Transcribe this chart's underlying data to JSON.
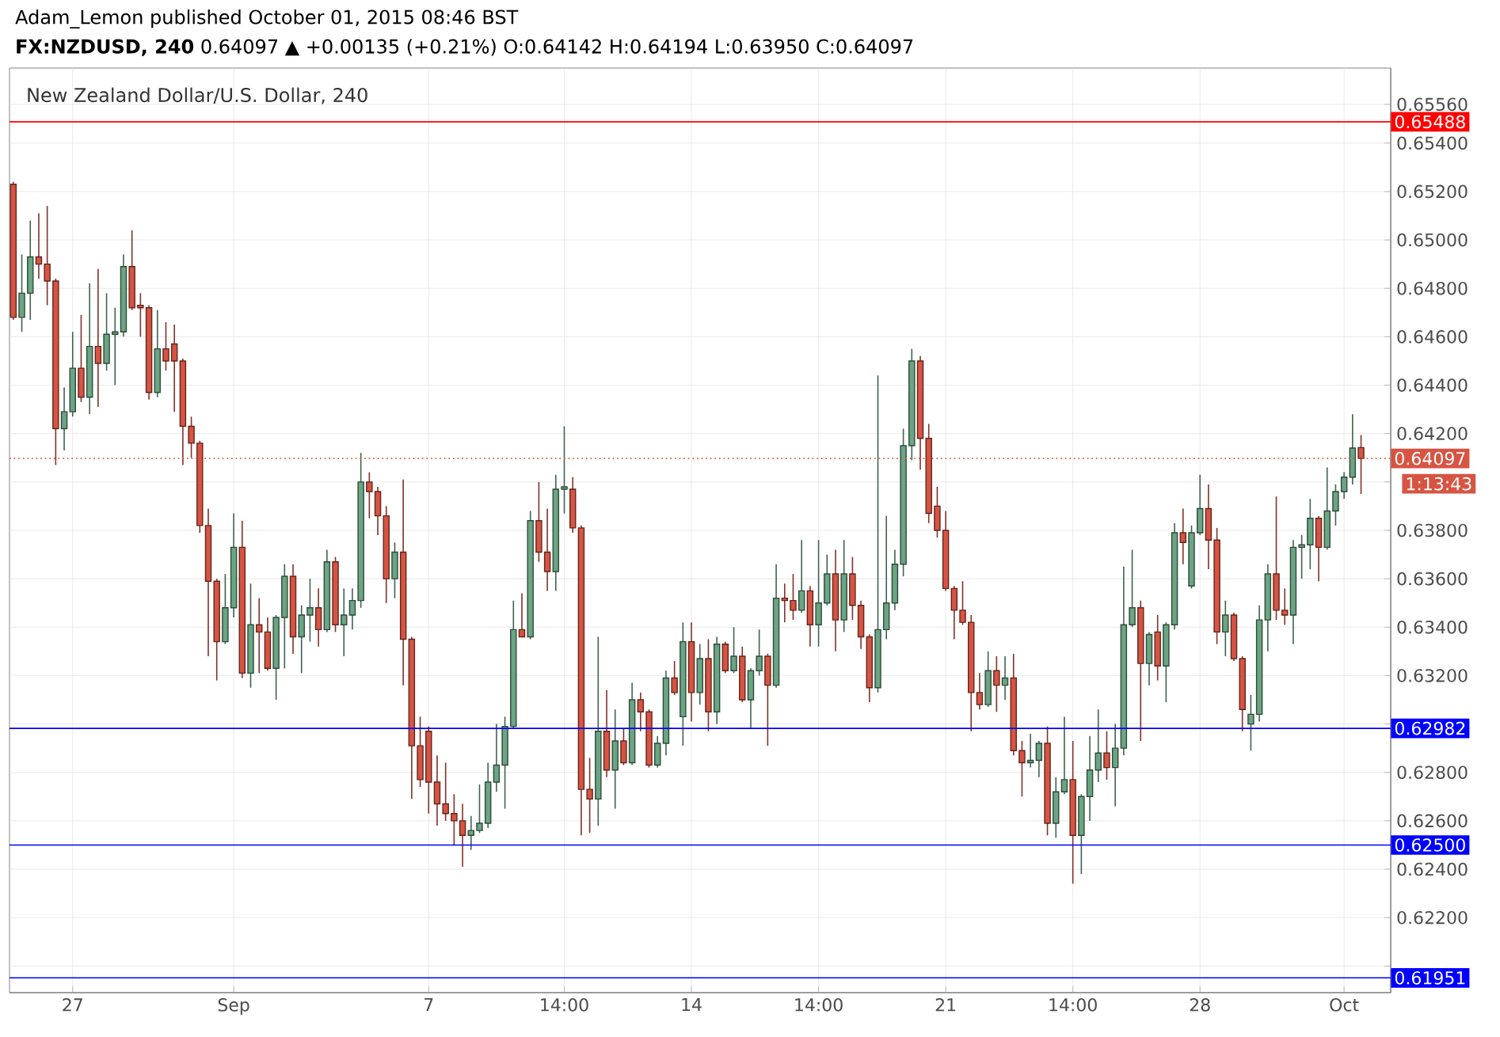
{
  "chart_data": {
    "type": "candlestick",
    "title": "New Zealand Dollar/U.S. Dollar, 240",
    "annotations": [
      "Adam_Lemon published October 01, 2015 08:46 BST",
      "**FX:NZDUSD, 240**  0.64097 ▲ +0.00135 (+0.21%)  O:0.64142  H:0.64194  L:0.63950  C:0.64097",
      "1:13:43"
    ],
    "categories": [
      null,
      null,
      null,
      null,
      null,
      null,
      null,
      "27",
      null,
      null,
      null,
      null,
      null,
      null,
      null,
      null,
      null,
      null,
      null,
      null,
      null,
      null,
      null,
      null,
      null,
      null,
      "Sep",
      null,
      null,
      null,
      null,
      null,
      null,
      null,
      null,
      null,
      null,
      null,
      null,
      null,
      null,
      null,
      null,
      null,
      null,
      null,
      null,
      null,
      null,
      "7",
      null,
      null,
      null,
      null,
      null,
      null,
      null,
      null,
      null,
      null,
      null,
      null,
      null,
      null,
      null,
      "14:00",
      null,
      null,
      null,
      null,
      null,
      null,
      null,
      null,
      null,
      null,
      null,
      null,
      null,
      null,
      "14",
      null,
      null,
      null,
      null,
      null,
      null,
      null,
      null,
      null,
      null,
      null,
      null,
      null,
      null,
      "14:00",
      null,
      null,
      null,
      null,
      null,
      null,
      null,
      null,
      null,
      null,
      null,
      null,
      null,
      null,
      "21",
      null,
      null,
      null,
      null,
      null,
      null,
      null,
      null,
      null,
      null,
      null,
      null,
      null,
      null,
      "14:00",
      null,
      null,
      null,
      null,
      null,
      null,
      null,
      null,
      null,
      null,
      null,
      null,
      null,
      null,
      "28",
      null,
      null,
      null,
      null,
      null,
      null,
      null,
      null,
      null,
      null,
      null,
      null,
      null,
      null,
      null,
      null,
      "Oct",
      null,
      null
    ],
    "ohlc": [
      [
        0.6523,
        0.6524,
        0.6467,
        0.6468
      ],
      [
        0.6468,
        0.6494,
        0.6462,
        0.6478
      ],
      [
        0.6478,
        0.6508,
        0.6467,
        0.6493
      ],
      [
        0.6493,
        0.6511,
        0.6484,
        0.649
      ],
      [
        0.649,
        0.6514,
        0.6473,
        0.6483
      ],
      [
        0.6483,
        0.6484,
        0.6407,
        0.6422
      ],
      [
        0.6422,
        0.6439,
        0.6413,
        0.6429
      ],
      [
        0.6429,
        0.6462,
        0.6427,
        0.6447
      ],
      [
        0.6447,
        0.6469,
        0.6433,
        0.6435
      ],
      [
        0.6435,
        0.6482,
        0.6428,
        0.6456
      ],
      [
        0.6456,
        0.6488,
        0.6431,
        0.6449
      ],
      [
        0.6449,
        0.6478,
        0.6446,
        0.6461
      ],
      [
        0.6461,
        0.6472,
        0.644,
        0.6462
      ],
      [
        0.6462,
        0.6494,
        0.646,
        0.6489
      ],
      [
        0.6489,
        0.6504,
        0.6471,
        0.6472
      ],
      [
        0.6473,
        0.6478,
        0.646,
        0.6472
      ],
      [
        0.6472,
        0.6473,
        0.6434,
        0.6437
      ],
      [
        0.6437,
        0.6471,
        0.6435,
        0.6455
      ],
      [
        0.6455,
        0.6466,
        0.6446,
        0.645
      ],
      [
        0.6457,
        0.6465,
        0.6429,
        0.645
      ],
      [
        0.645,
        0.6451,
        0.6407,
        0.6423
      ],
      [
        0.6423,
        0.6427,
        0.641,
        0.6416
      ],
      [
        0.6416,
        0.6417,
        0.6379,
        0.6382
      ],
      [
        0.6382,
        0.6389,
        0.6328,
        0.6359
      ],
      [
        0.6359,
        0.636,
        0.6318,
        0.6334
      ],
      [
        0.6334,
        0.6362,
        0.6333,
        0.6348
      ],
      [
        0.6348,
        0.6387,
        0.6344,
        0.6373
      ],
      [
        0.6373,
        0.6384,
        0.6319,
        0.6321
      ],
      [
        0.6321,
        0.6358,
        0.6315,
        0.6341
      ],
      [
        0.6341,
        0.6352,
        0.6321,
        0.6338
      ],
      [
        0.6338,
        0.6344,
        0.6322,
        0.6323
      ],
      [
        0.6323,
        0.6345,
        0.631,
        0.6344
      ],
      [
        0.6344,
        0.6366,
        0.6323,
        0.6361
      ],
      [
        0.6361,
        0.6366,
        0.6329,
        0.6336
      ],
      [
        0.6336,
        0.6349,
        0.6321,
        0.6345
      ],
      [
        0.6345,
        0.636,
        0.6334,
        0.6348
      ],
      [
        0.6348,
        0.6356,
        0.6332,
        0.6339
      ],
      [
        0.6339,
        0.6372,
        0.6338,
        0.6367
      ],
      [
        0.6367,
        0.6369,
        0.6338,
        0.6341
      ],
      [
        0.6341,
        0.6356,
        0.6328,
        0.6345
      ],
      [
        0.6345,
        0.6356,
        0.6339,
        0.6351
      ],
      [
        0.6351,
        0.6412,
        0.6348,
        0.64
      ],
      [
        0.64,
        0.6404,
        0.6385,
        0.6396
      ],
      [
        0.6396,
        0.6398,
        0.6378,
        0.6386
      ],
      [
        0.6386,
        0.639,
        0.635,
        0.636
      ],
      [
        0.636,
        0.6375,
        0.6352,
        0.6371
      ],
      [
        0.6371,
        0.6401,
        0.6316,
        0.6335
      ],
      [
        0.6335,
        0.6336,
        0.6269,
        0.6291
      ],
      [
        0.6291,
        0.6303,
        0.6274,
        0.6277
      ],
      [
        0.6297,
        0.6299,
        0.6263,
        0.6276
      ],
      [
        0.6276,
        0.6287,
        0.6258,
        0.6267
      ],
      [
        0.6267,
        0.6284,
        0.626,
        0.6263
      ],
      [
        0.6263,
        0.6271,
        0.625,
        0.626
      ],
      [
        0.626,
        0.6267,
        0.6241,
        0.6254
      ],
      [
        0.6254,
        0.6262,
        0.6248,
        0.6256
      ],
      [
        0.6256,
        0.6275,
        0.6255,
        0.6259
      ],
      [
        0.6259,
        0.6284,
        0.6257,
        0.6276
      ],
      [
        0.6276,
        0.63,
        0.6272,
        0.6283
      ],
      [
        0.6283,
        0.6303,
        0.6265,
        0.6299
      ],
      [
        0.6299,
        0.6351,
        0.6298,
        0.6339
      ],
      [
        0.6339,
        0.6354,
        0.6336,
        0.6336
      ],
      [
        0.6336,
        0.6388,
        0.6335,
        0.6384
      ],
      [
        0.6384,
        0.64,
        0.6367,
        0.6371
      ],
      [
        0.6371,
        0.6389,
        0.6355,
        0.6363
      ],
      [
        0.6363,
        0.6403,
        0.6355,
        0.6397
      ],
      [
        0.6397,
        0.6423,
        0.6387,
        0.6398
      ],
      [
        0.6397,
        0.6402,
        0.6379,
        0.6381
      ],
      [
        0.6381,
        0.6382,
        0.6254,
        0.6273
      ],
      [
        0.6273,
        0.6286,
        0.6255,
        0.6269
      ],
      [
        0.6269,
        0.6336,
        0.6258,
        0.6297
      ],
      [
        0.6297,
        0.6314,
        0.6278,
        0.6281
      ],
      [
        0.6281,
        0.6306,
        0.6265,
        0.6293
      ],
      [
        0.6293,
        0.6298,
        0.6283,
        0.6284
      ],
      [
        0.6284,
        0.6317,
        0.6283,
        0.631
      ],
      [
        0.631,
        0.6313,
        0.6297,
        0.6305
      ],
      [
        0.6305,
        0.6306,
        0.6282,
        0.6283
      ],
      [
        0.6283,
        0.6295,
        0.6282,
        0.6292
      ],
      [
        0.6292,
        0.6322,
        0.6287,
        0.6319
      ],
      [
        0.6319,
        0.6326,
        0.6312,
        0.6313
      ],
      [
        0.6303,
        0.6342,
        0.6291,
        0.6334
      ],
      [
        0.6334,
        0.6342,
        0.6301,
        0.6313
      ],
      [
        0.6313,
        0.6333,
        0.6308,
        0.6327
      ],
      [
        0.6327,
        0.6335,
        0.6297,
        0.6305
      ],
      [
        0.6305,
        0.6336,
        0.63,
        0.6333
      ],
      [
        0.6333,
        0.6334,
        0.6321,
        0.6322
      ],
      [
        0.6322,
        0.634,
        0.6321,
        0.6328
      ],
      [
        0.6328,
        0.6332,
        0.6309,
        0.631
      ],
      [
        0.631,
        0.6323,
        0.6298,
        0.6322
      ],
      [
        0.6322,
        0.6339,
        0.632,
        0.6328
      ],
      [
        0.6328,
        0.6329,
        0.6291,
        0.6316
      ],
      [
        0.6316,
        0.6366,
        0.6315,
        0.6352
      ],
      [
        0.6352,
        0.6358,
        0.6342,
        0.6351
      ],
      [
        0.6351,
        0.6362,
        0.6343,
        0.6347
      ],
      [
        0.6347,
        0.6376,
        0.6346,
        0.6355
      ],
      [
        0.6355,
        0.6357,
        0.6332,
        0.6341
      ],
      [
        0.6341,
        0.6376,
        0.6332,
        0.635
      ],
      [
        0.635,
        0.637,
        0.6349,
        0.6362
      ],
      [
        0.6362,
        0.6372,
        0.633,
        0.6343
      ],
      [
        0.6343,
        0.6376,
        0.6338,
        0.6362
      ],
      [
        0.6362,
        0.6369,
        0.6343,
        0.6349
      ],
      [
        0.6349,
        0.6351,
        0.6331,
        0.6336
      ],
      [
        0.6336,
        0.6337,
        0.6309,
        0.6315
      ],
      [
        0.6315,
        0.6444,
        0.6313,
        0.6339
      ],
      [
        0.6339,
        0.6386,
        0.6335,
        0.635
      ],
      [
        0.635,
        0.6372,
        0.6347,
        0.6366
      ],
      [
        0.6366,
        0.6422,
        0.6361,
        0.6415
      ],
      [
        0.6415,
        0.6455,
        0.6409,
        0.645
      ],
      [
        0.645,
        0.6452,
        0.6405,
        0.6418
      ],
      [
        0.6418,
        0.6424,
        0.6383,
        0.6387
      ],
      [
        0.639,
        0.6398,
        0.6377,
        0.638
      ],
      [
        0.638,
        0.6388,
        0.6355,
        0.6356
      ],
      [
        0.6356,
        0.6357,
        0.6335,
        0.6347
      ],
      [
        0.6347,
        0.6359,
        0.6341,
        0.6342
      ],
      [
        0.6342,
        0.6345,
        0.6297,
        0.6313
      ],
      [
        0.6313,
        0.6321,
        0.6306,
        0.6308
      ],
      [
        0.6308,
        0.633,
        0.6307,
        0.6322
      ],
      [
        0.6322,
        0.6328,
        0.6305,
        0.6316
      ],
      [
        0.6316,
        0.6328,
        0.631,
        0.6319
      ],
      [
        0.6319,
        0.6329,
        0.6287,
        0.6289
      ],
      [
        0.6289,
        0.6293,
        0.627,
        0.6284
      ],
      [
        0.6284,
        0.6296,
        0.6282,
        0.6285
      ],
      [
        0.6285,
        0.6293,
        0.6278,
        0.6292
      ],
      [
        0.6292,
        0.6299,
        0.6254,
        0.6259
      ],
      [
        0.6259,
        0.6278,
        0.6253,
        0.6272
      ],
      [
        0.6272,
        0.6303,
        0.6271,
        0.6277
      ],
      [
        0.6277,
        0.6293,
        0.6234,
        0.6254
      ],
      [
        0.6254,
        0.6271,
        0.6238,
        0.627
      ],
      [
        0.627,
        0.6295,
        0.626,
        0.6281
      ],
      [
        0.6281,
        0.6306,
        0.6276,
        0.6288
      ],
      [
        0.6288,
        0.6297,
        0.6277,
        0.6282
      ],
      [
        0.6282,
        0.63,
        0.6266,
        0.629
      ],
      [
        0.629,
        0.6365,
        0.6287,
        0.6341
      ],
      [
        0.6341,
        0.6372,
        0.634,
        0.6348
      ],
      [
        0.6348,
        0.6351,
        0.6293,
        0.6325
      ],
      [
        0.6325,
        0.6338,
        0.6316,
        0.6337
      ],
      [
        0.6338,
        0.6345,
        0.6318,
        0.6324
      ],
      [
        0.6324,
        0.6342,
        0.6309,
        0.6341
      ],
      [
        0.6341,
        0.6383,
        0.6339,
        0.6379
      ],
      [
        0.6379,
        0.6389,
        0.6366,
        0.6375
      ],
      [
        0.6357,
        0.6382,
        0.6356,
        0.6379
      ],
      [
        0.6379,
        0.6403,
        0.6378,
        0.6389
      ],
      [
        0.6389,
        0.6399,
        0.6364,
        0.6376
      ],
      [
        0.6376,
        0.6381,
        0.6333,
        0.6338
      ],
      [
        0.6338,
        0.6351,
        0.6328,
        0.6345
      ],
      [
        0.6345,
        0.6346,
        0.6326,
        0.6327
      ],
      [
        0.6327,
        0.6328,
        0.6297,
        0.6306
      ],
      [
        0.63,
        0.6312,
        0.6289,
        0.6304
      ],
      [
        0.6304,
        0.6349,
        0.6301,
        0.6343
      ],
      [
        0.6343,
        0.6366,
        0.633,
        0.6362
      ],
      [
        0.6362,
        0.6394,
        0.6343,
        0.6347
      ],
      [
        0.6347,
        0.6356,
        0.6341,
        0.6345
      ],
      [
        0.6345,
        0.6376,
        0.6333,
        0.6373
      ],
      [
        0.6373,
        0.6378,
        0.636,
        0.6374
      ],
      [
        0.6374,
        0.6393,
        0.6364,
        0.6385
      ],
      [
        0.6385,
        0.6386,
        0.6359,
        0.6373
      ],
      [
        0.6373,
        0.6406,
        0.6372,
        0.6388
      ],
      [
        0.6388,
        0.6399,
        0.6382,
        0.6396
      ],
      [
        0.6396,
        0.6404,
        0.6393,
        0.6402
      ],
      [
        0.6402,
        0.6428,
        0.6399,
        0.6414
      ],
      [
        0.64142,
        0.64194,
        0.6395,
        0.64097
      ]
    ],
    "colors": [
      "#d75442",
      "#6ba583",
      "#6ba583",
      "#d75442",
      "#d75442",
      "#d75442",
      "#6ba583",
      "#6ba583",
      "#d75442",
      "#6ba583",
      "#d75442",
      "#6ba583",
      "#6ba583",
      "#6ba583",
      "#d75442",
      "#d75442",
      "#d75442",
      "#6ba583",
      "#d75442",
      "#d75442",
      "#d75442",
      "#d75442",
      "#d75442",
      "#d75442",
      "#d75442",
      "#6ba583",
      "#6ba583",
      "#d75442",
      "#6ba583",
      "#d75442",
      "#d75442",
      "#6ba583",
      "#6ba583",
      "#d75442",
      "#6ba583",
      "#6ba583",
      "#d75442",
      "#6ba583",
      "#d75442",
      "#6ba583",
      "#6ba583",
      "#6ba583",
      "#d75442",
      "#d75442",
      "#d75442",
      "#6ba583",
      "#d75442",
      "#d75442",
      "#d75442",
      "#d75442",
      "#d75442",
      "#d75442",
      "#d75442",
      "#d75442",
      "#6ba583",
      "#6ba583",
      "#6ba583",
      "#6ba583",
      "#6ba583",
      "#6ba583",
      "#d75442",
      "#6ba583",
      "#d75442",
      "#d75442",
      "#6ba583",
      "#6ba583",
      "#d75442",
      "#d75442",
      "#d75442",
      "#6ba583",
      "#d75442",
      "#6ba583",
      "#d75442",
      "#6ba583",
      "#d75442",
      "#d75442",
      "#6ba583",
      "#6ba583",
      "#d75442",
      "#6ba583",
      "#d75442",
      "#6ba583",
      "#d75442",
      "#6ba583",
      "#d75442",
      "#6ba583",
      "#d75442",
      "#6ba583",
      "#6ba583",
      "#d75442",
      "#6ba583",
      "#d75442",
      "#d75442",
      "#6ba583",
      "#d75442",
      "#6ba583",
      "#6ba583",
      "#d75442",
      "#6ba583",
      "#d75442",
      "#d75442",
      "#d75442",
      "#6ba583",
      "#6ba583",
      "#6ba583",
      "#6ba583",
      "#6ba583",
      "#d75442",
      "#d75442",
      "#d75442",
      "#d75442",
      "#d75442",
      "#d75442",
      "#d75442",
      "#d75442",
      "#6ba583",
      "#d75442",
      "#6ba583",
      "#d75442",
      "#d75442",
      "#6ba583",
      "#6ba583",
      "#d75442",
      "#6ba583",
      "#6ba583",
      "#d75442",
      "#6ba583",
      "#6ba583",
      "#6ba583",
      "#d75442",
      "#6ba583",
      "#6ba583",
      "#6ba583",
      "#d75442",
      "#6ba583",
      "#d75442",
      "#6ba583",
      "#6ba583",
      "#d75442",
      "#6ba583",
      "#6ba583",
      "#d75442",
      "#d75442",
      "#6ba583",
      "#d75442",
      "#d75442",
      "#6ba583",
      "#6ba583",
      "#6ba583",
      "#d75442",
      "#d75442",
      "#6ba583",
      "#6ba583",
      "#6ba583",
      "#d75442",
      "#6ba583",
      "#6ba583",
      "#6ba583",
      "#6ba583",
      "#d75442"
    ],
    "ylim": [
      0.6189,
      0.6571
    ],
    "yticks": [
      {
        "value": 0.62,
        "label": null
      },
      {
        "value": 0.622,
        "label": "0.62200"
      },
      {
        "value": 0.624,
        "label": "0.62400"
      },
      {
        "value": 0.626,
        "label": "0.62600"
      },
      {
        "value": 0.628,
        "label": "0.62800"
      },
      {
        "value": 0.63,
        "label": null
      },
      {
        "value": 0.632,
        "label": "0.63200"
      },
      {
        "value": 0.634,
        "label": "0.63400"
      },
      {
        "value": 0.636,
        "label": "0.63600"
      },
      {
        "value": 0.638,
        "label": "0.63800"
      },
      {
        "value": 0.64,
        "label": null
      },
      {
        "value": 0.642,
        "label": "0.64200"
      },
      {
        "value": 0.644,
        "label": "0.64400"
      },
      {
        "value": 0.646,
        "label": "0.64600"
      },
      {
        "value": 0.648,
        "label": "0.64800"
      },
      {
        "value": 0.65,
        "label": "0.65000"
      },
      {
        "value": 0.652,
        "label": "0.65200"
      },
      {
        "value": 0.654,
        "label": "0.65400"
      },
      {
        "value": 0.6556,
        "label": "0.65560"
      }
    ],
    "ref_lines": [
      {
        "axis": "y",
        "value": 0.65488,
        "label": "0.65488",
        "color": "#ff0000"
      },
      {
        "axis": "y",
        "value": 0.64097,
        "label": "0.64097",
        "color": "#d75442",
        "line_style": "dotted"
      },
      {
        "axis": "y",
        "value": 0.62982,
        "label": "0.62982",
        "color": "#0000ff"
      },
      {
        "axis": "y",
        "value": 0.625,
        "label": "0.62500",
        "color": "#0000ff"
      },
      {
        "axis": "y",
        "value": 0.61951,
        "label": "0.61951",
        "color": "#0000ff"
      }
    ],
    "grid": true
  }
}
